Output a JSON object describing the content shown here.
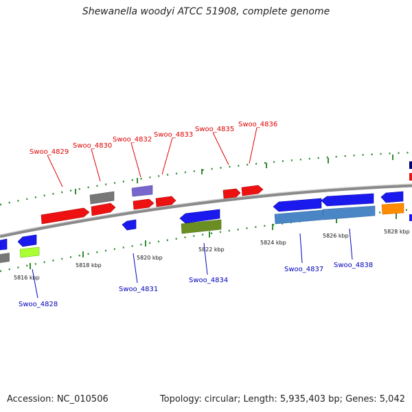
{
  "title": "Shewanella woodyi ATCC 51908, complete genome",
  "footer": {
    "accession": "Accession: NC_010506",
    "summary": "Topology: circular; Length: 5,935,403 bp; Genes: 5,042"
  },
  "colors": {
    "forward_label": "#dd0000",
    "reverse_label": "#0000bb",
    "backbone": "#8a8a8a",
    "dotted": "#2e8b2e"
  },
  "ticks": [
    "5816 kbp",
    "5818 kbp",
    "5820 kbp",
    "5822 kbp",
    "5824 kbp",
    "5826 kbp",
    "5828 kbp"
  ],
  "labels": {
    "top": [
      "Swoo_4829",
      "Swoo_4830",
      "Swoo_4832",
      "Swoo_4833",
      "Swoo_4835",
      "Swoo_4836"
    ],
    "bottom": [
      "Swoo_4828",
      "Swoo_4831",
      "Swoo_4834",
      "Swoo_4837",
      "Swoo_4838"
    ]
  }
}
